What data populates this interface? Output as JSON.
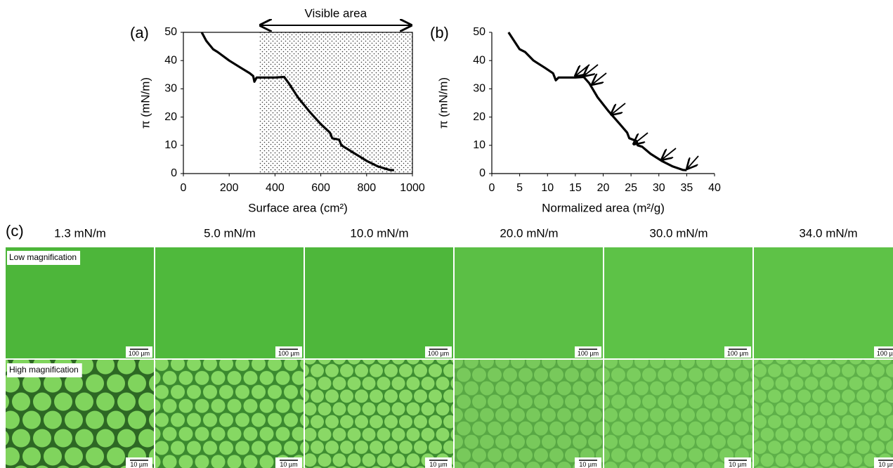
{
  "chart_data": [
    {
      "type": "line",
      "label": "(a)",
      "x_label": "Surface area (cm²)",
      "y_label": "π (mN/m)",
      "xlim": [
        0,
        1000
      ],
      "xticks": [
        0,
        200,
        400,
        600,
        800,
        1000
      ],
      "ylim": [
        0,
        50
      ],
      "yticks": [
        0,
        10,
        20,
        30,
        40,
        50
      ],
      "frame": true,
      "color": "#000000",
      "x": [
        80,
        100,
        130,
        150,
        200,
        250,
        290,
        305,
        310,
        320,
        350,
        400,
        440,
        460,
        500,
        550,
        600,
        640,
        650,
        680,
        690,
        700,
        750,
        800,
        850,
        900,
        920
      ],
      "values": [
        50,
        47,
        44,
        43,
        40,
        37.5,
        35.5,
        34.5,
        32.5,
        34,
        34,
        34,
        34.2,
        32,
        27,
        22,
        17.5,
        14.5,
        12.5,
        12,
        10,
        9.5,
        7,
        4.5,
        2.5,
        1.3,
        1.2
      ],
      "annotations": [
        {
          "text": "Visible area",
          "x": [
            330,
            1000
          ]
        }
      ]
    },
    {
      "type": "line",
      "label": "(b)",
      "x_label": "Normalized area (m²/g)",
      "y_label": "π (mN/m)",
      "xlim": [
        0,
        40
      ],
      "xticks": [
        0,
        5,
        10,
        15,
        20,
        25,
        30,
        35,
        40
      ],
      "ylim": [
        0,
        50
      ],
      "yticks": [
        0,
        10,
        20,
        30,
        40,
        50
      ],
      "frame": false,
      "color": "#000000",
      "x": [
        3,
        4,
        5,
        6,
        7.5,
        9.5,
        11,
        11.5,
        12,
        13,
        15,
        16.5,
        17.5,
        19,
        21,
        23,
        24.3,
        24.7,
        26,
        26.2,
        27,
        28.5,
        30.5,
        32.5,
        34.3,
        35
      ],
      "values": [
        50,
        47,
        44,
        43,
        40,
        37.5,
        35.5,
        33,
        34,
        34,
        34,
        34.2,
        32,
        27,
        22,
        17.5,
        14.5,
        12.5,
        11.5,
        10,
        9.5,
        7,
        4.5,
        2.5,
        1.3,
        1.2
      ],
      "annotations": []
    }
  ],
  "panel_c": {
    "label": "(c)",
    "columns": [
      "1.3 mN/m",
      "5.0 mN/m",
      "10.0 mN/m",
      "20.0 mN/m",
      "30.0 mN/m",
      "34.0 mN/m"
    ],
    "rows": [
      {
        "label": "Low magnification",
        "scale_bar": "100 µm"
      },
      {
        "label": "High magnification",
        "scale_bar": "10 µm"
      }
    ]
  }
}
